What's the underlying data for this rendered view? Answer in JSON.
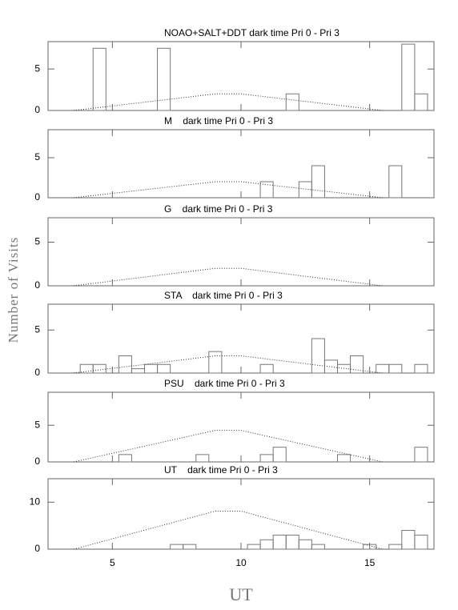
{
  "ylabel": "Number of Visits",
  "xlabel": "UT",
  "chart_data": [
    {
      "type": "histogram",
      "title": "NOAO+SALT+DDT dark time Pri 0 - Pri 3",
      "color": "#777777",
      "bins": [
        2.75,
        3.25,
        3.75,
        4.25,
        4.75,
        5.25,
        5.75,
        6.25,
        6.75,
        7.25,
        7.75,
        8.25,
        8.75,
        9.25,
        9.75,
        10.25,
        10.75,
        11.25,
        11.75,
        12.25,
        12.75,
        13.25,
        13.75,
        14.25,
        14.75,
        15.25,
        15.75,
        16.25,
        16.75,
        17.25
      ],
      "counts": [
        0,
        0,
        0,
        7.5,
        0,
        0,
        0,
        0,
        7.5,
        0,
        0,
        0,
        0,
        0,
        0,
        0,
        0,
        0,
        2,
        0,
        0,
        0,
        0,
        0,
        0,
        0,
        0,
        8,
        2
      ],
      "line": {
        "x": [
          3.5,
          9,
          10,
          15.5
        ],
        "y": [
          0,
          2,
          2,
          0
        ]
      },
      "xlim": [
        2.5,
        17.5
      ],
      "xticks": [
        5,
        10,
        15
      ],
      "ylim": [
        0,
        8.3
      ],
      "yticks": [
        0,
        5
      ],
      "show_xtick_labels": false
    },
    {
      "type": "histogram",
      "title": "M    dark time Pri 0 - Pri 3",
      "color": "#777777",
      "bins": [
        2.75,
        3.25,
        3.75,
        4.25,
        4.75,
        5.25,
        5.75,
        6.25,
        6.75,
        7.25,
        7.75,
        8.25,
        8.75,
        9.25,
        9.75,
        10.25,
        10.75,
        11.25,
        11.75,
        12.25,
        12.75,
        13.25,
        13.75,
        14.25,
        14.75,
        15.25,
        15.75,
        16.25,
        16.75,
        17.25
      ],
      "counts": [
        0,
        0,
        0,
        0,
        0,
        0,
        0,
        0,
        0,
        0,
        0,
        0,
        0,
        0,
        0,
        0,
        2,
        0,
        0,
        2,
        4,
        0,
        0,
        0,
        0,
        0,
        4,
        0,
        0
      ],
      "line": {
        "x": [
          3.5,
          9,
          10,
          15.5
        ],
        "y": [
          0,
          2,
          2,
          0
        ]
      },
      "xlim": [
        2.5,
        17.5
      ],
      "xticks": [
        5,
        10,
        15
      ],
      "ylim": [
        0,
        8.5
      ],
      "yticks": [
        0,
        5
      ],
      "show_xtick_labels": false
    },
    {
      "type": "histogram",
      "title": "G    dark time Pri 0 - Pri 3",
      "color": "#777777",
      "bins": [
        2.75,
        3.25,
        3.75,
        4.25,
        4.75,
        5.25,
        5.75,
        6.25,
        6.75,
        7.25,
        7.75,
        8.25,
        8.75,
        9.25,
        9.75,
        10.25,
        10.75,
        11.25,
        11.75,
        12.25,
        12.75,
        13.25,
        13.75,
        14.25,
        14.75,
        15.25,
        15.75,
        16.25,
        16.75,
        17.25
      ],
      "counts": [
        0,
        0,
        0,
        0,
        0,
        0,
        0,
        0,
        0,
        0,
        0,
        0,
        0,
        0,
        0,
        0,
        0,
        0,
        0,
        0,
        0,
        0,
        0,
        0,
        0,
        0,
        0,
        0,
        0
      ],
      "line": {
        "x": [
          3.5,
          9,
          10,
          15.5
        ],
        "y": [
          0,
          2,
          2,
          0
        ]
      },
      "xlim": [
        2.5,
        17.5
      ],
      "xticks": [
        5,
        10,
        15
      ],
      "ylim": [
        0,
        7.8
      ],
      "yticks": [
        0,
        5
      ],
      "show_xtick_labels": false
    },
    {
      "type": "histogram",
      "title": "STA    dark time Pri 0 - Pri 3",
      "color": "#777777",
      "bins": [
        2.75,
        3.25,
        3.75,
        4.25,
        4.75,
        5.25,
        5.75,
        6.25,
        6.75,
        7.25,
        7.75,
        8.25,
        8.75,
        9.25,
        9.75,
        10.25,
        10.75,
        11.25,
        11.75,
        12.25,
        12.75,
        13.25,
        13.75,
        14.25,
        14.75,
        15.25,
        15.75,
        16.25,
        16.75,
        17.25
      ],
      "counts": [
        0,
        0,
        1,
        1,
        0,
        2,
        0.5,
        1,
        1,
        0,
        0,
        0,
        2.5,
        0,
        0,
        0,
        1,
        0,
        0,
        0,
        4,
        1.5,
        1,
        2,
        0,
        1,
        1,
        0,
        1
      ],
      "line": {
        "x": [
          3.5,
          9,
          10,
          15.5
        ],
        "y": [
          0,
          2,
          2,
          0
        ]
      },
      "xlim": [
        2.5,
        17.5
      ],
      "xticks": [
        5,
        10,
        15
      ],
      "ylim": [
        0,
        8
      ],
      "yticks": [
        0,
        5
      ],
      "show_xtick_labels": false
    },
    {
      "type": "histogram",
      "title": "PSU    dark time Pri 0 - Pri 3",
      "color": "#777777",
      "bins": [
        2.75,
        3.25,
        3.75,
        4.25,
        4.75,
        5.25,
        5.75,
        6.25,
        6.75,
        7.25,
        7.75,
        8.25,
        8.75,
        9.25,
        9.75,
        10.25,
        10.75,
        11.25,
        11.75,
        12.25,
        12.75,
        13.25,
        13.75,
        14.25,
        14.75,
        15.25,
        15.75,
        16.25,
        16.75,
        17.25
      ],
      "counts": [
        0,
        0,
        0,
        0,
        0,
        1,
        0,
        0,
        0,
        0,
        0,
        1,
        0,
        0,
        0,
        0,
        1,
        2,
        0,
        0,
        0,
        0,
        1,
        0,
        0,
        0,
        0,
        0,
        2
      ],
      "line": {
        "x": [
          3.5,
          9,
          10,
          15.5
        ],
        "y": [
          0,
          4.3,
          4.3,
          0
        ]
      },
      "xlim": [
        2.5,
        17.5
      ],
      "xticks": [
        5,
        10,
        15
      ],
      "ylim": [
        0,
        9.5
      ],
      "yticks": [
        0,
        5
      ],
      "show_xtick_labels": false
    },
    {
      "type": "histogram",
      "title": "UT    dark time Pri 0 - Pri 3",
      "color": "#777777",
      "bins": [
        2.75,
        3.25,
        3.75,
        4.25,
        4.75,
        5.25,
        5.75,
        6.25,
        6.75,
        7.25,
        7.75,
        8.25,
        8.75,
        9.25,
        9.75,
        10.25,
        10.75,
        11.25,
        11.75,
        12.25,
        12.75,
        13.25,
        13.75,
        14.25,
        14.75,
        15.25,
        15.75,
        16.25,
        16.75,
        17.25
      ],
      "counts": [
        0,
        0,
        0,
        0,
        0,
        0,
        0,
        0,
        0,
        1,
        1,
        0,
        0,
        0,
        0,
        1,
        2,
        3,
        3,
        2,
        1,
        0,
        0,
        0,
        1,
        0,
        1,
        4,
        3
      ],
      "line": {
        "x": [
          3.5,
          9,
          10,
          15.5
        ],
        "y": [
          0,
          8.1,
          8.1,
          0
        ]
      },
      "xlim": [
        2.5,
        17.5
      ],
      "xticks": [
        5,
        10,
        15
      ],
      "ylim": [
        0,
        15
      ],
      "yticks": [
        0,
        10
      ],
      "show_xtick_labels": true
    }
  ]
}
